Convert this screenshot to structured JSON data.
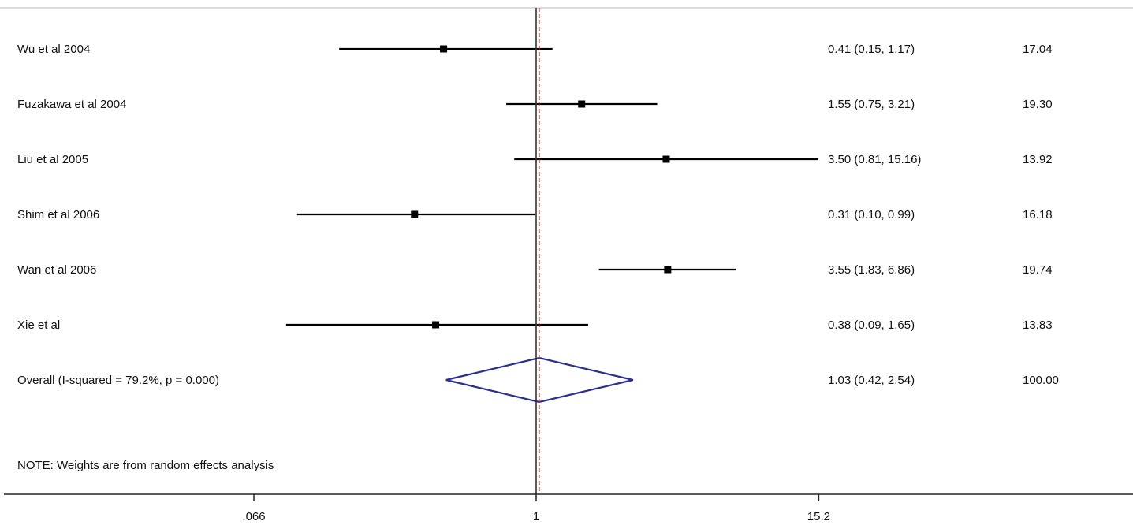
{
  "chart_data": {
    "type": "forest",
    "x_scale": "log",
    "x_ticks": [
      {
        "value": 0.066,
        "label": ".066"
      },
      {
        "value": 1,
        "label": "1"
      },
      {
        "value": 15.2,
        "label": "15.2"
      }
    ],
    "xlim": [
      0.0088,
      60
    ],
    "null_line": 1,
    "overall_line": 1.03,
    "studies": [
      {
        "label": "Wu et al 2004",
        "estimate": 0.41,
        "lower": 0.15,
        "upper": 1.17,
        "ci_text": "0.41 (0.15, 1.17)",
        "weight": "17.04"
      },
      {
        "label": "Fuzakawa et al 2004",
        "estimate": 1.55,
        "lower": 0.75,
        "upper": 3.21,
        "ci_text": "1.55 (0.75, 3.21)",
        "weight": "19.30"
      },
      {
        "label": "Liu et al 2005",
        "estimate": 3.5,
        "lower": 0.81,
        "upper": 15.16,
        "ci_text": "3.50 (0.81, 15.16)",
        "weight": "13.92"
      },
      {
        "label": "Shim et al 2006",
        "estimate": 0.31,
        "lower": 0.1,
        "upper": 0.99,
        "ci_text": "0.31 (0.10, 0.99)",
        "weight": "16.18"
      },
      {
        "label": "Wan et al 2006",
        "estimate": 3.55,
        "lower": 1.83,
        "upper": 6.86,
        "ci_text": "3.55 (1.83, 6.86)",
        "weight": "19.74"
      },
      {
        "label": "Xie et al",
        "estimate": 0.38,
        "lower": 0.09,
        "upper": 1.65,
        "ci_text": "0.38 (0.09, 1.65)",
        "weight": "13.83"
      }
    ],
    "overall": {
      "label": "Overall  (I-squared = 79.2%, p = 0.000)",
      "estimate": 1.03,
      "lower": 0.42,
      "upper": 2.54,
      "ci_text": "1.03 (0.42, 2.54)",
      "weight": "100.00"
    },
    "note": "NOTE: Weights are from random effects analysis",
    "colors": {
      "diamond": "#2b2f8f",
      "overall_line": "#c0392b",
      "marks": "#000000"
    }
  }
}
